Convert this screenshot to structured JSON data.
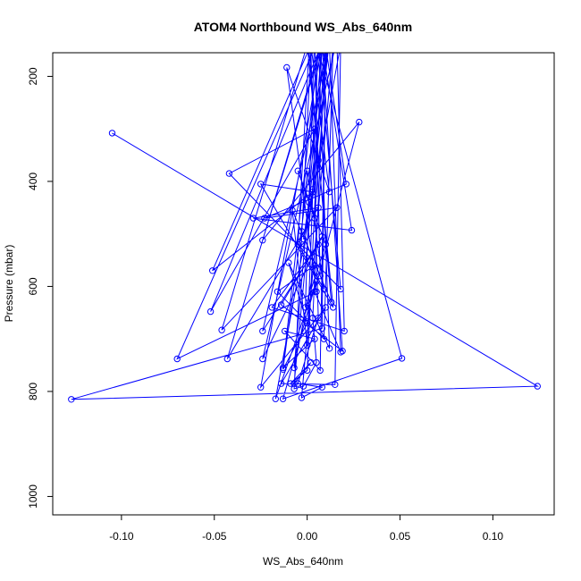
{
  "chart_data": {
    "type": "line",
    "title": "ATOM4 Northbound WS_Abs_640nm",
    "xlabel": "WS_Abs_640nm",
    "ylabel": "Pressure (mbar)",
    "xlim": [
      -0.137,
      0.133
    ],
    "ylim": [
      1035,
      155
    ],
    "y_reversed": true,
    "xticks": [
      -0.1,
      -0.05,
      0.0,
      0.05,
      0.1
    ],
    "xtick_labels": [
      "-0.10",
      "-0.05",
      "0.00",
      "0.05",
      "0.10"
    ],
    "yticks": [
      200,
      400,
      600,
      800,
      1000
    ],
    "ytick_labels": [
      "200",
      "400",
      "600",
      "800",
      "1000"
    ],
    "grid": false,
    "legend": "none",
    "colors": {
      "series": "#0000ff",
      "axis": "#000000",
      "background": "#ffffff"
    },
    "series": [
      {
        "points": [
          [
            -0.105,
            308
          ],
          [
            0.124,
            790
          ],
          [
            -0.127,
            815
          ],
          [
            0.008,
            680
          ],
          [
            0.01,
            120
          ],
          [
            -0.052,
            648
          ],
          [
            0.004,
            300
          ],
          [
            -0.042,
            385
          ],
          [
            0.018,
            605
          ],
          [
            0.006,
            130
          ],
          [
            -0.07,
            738
          ],
          [
            0.005,
            610
          ],
          [
            -0.011,
            183
          ],
          [
            0.012,
            420
          ],
          [
            0.002,
            140
          ],
          [
            -0.051,
            570
          ],
          [
            0.003,
            420
          ],
          [
            -0.025,
            405
          ],
          [
            0.014,
            640
          ],
          [
            0.0,
            140
          ],
          [
            -0.046,
            683
          ],
          [
            0.016,
            450
          ],
          [
            -0.023,
            470
          ],
          [
            0.021,
            405
          ],
          [
            0.009,
            120
          ],
          [
            -0.043,
            738
          ],
          [
            0.006,
            450
          ],
          [
            -0.029,
            470
          ],
          [
            0.024,
            493
          ],
          [
            0.008,
            140
          ],
          [
            -0.024,
            512
          ],
          [
            0.028,
            287
          ],
          [
            0.004,
            610
          ],
          [
            0.018,
            725
          ],
          [
            0.012,
            140
          ],
          [
            -0.024,
            685
          ],
          [
            0.006,
            520
          ],
          [
            -0.019,
            640
          ],
          [
            0.02,
            685
          ],
          [
            0.016,
            130
          ],
          [
            -0.024,
            738
          ],
          [
            0.008,
            505
          ],
          [
            -0.014,
            635
          ],
          [
            0.019,
            723
          ],
          [
            0.008,
            140
          ],
          [
            -0.025,
            792
          ],
          [
            0.01,
            640
          ],
          [
            -0.014,
            785
          ],
          [
            0.015,
            787
          ],
          [
            0.018,
            140
          ],
          [
            -0.017,
            814
          ],
          [
            0.005,
            590
          ],
          [
            -0.013,
            814
          ],
          [
            0.051,
            737
          ],
          [
            0.006,
            150
          ],
          [
            -0.013,
            755
          ],
          [
            0.004,
            700
          ],
          [
            -0.012,
            685
          ],
          [
            0.007,
            760
          ],
          [
            0.01,
            150
          ],
          [
            -0.007,
            785
          ],
          [
            0.002,
            745
          ],
          [
            -0.009,
            785
          ],
          [
            0.0,
            760
          ],
          [
            0.008,
            140
          ],
          [
            -0.007,
            755
          ],
          [
            0.004,
            560
          ],
          [
            -0.016,
            610
          ],
          [
            0.009,
            700
          ],
          [
            0.014,
            140
          ],
          [
            -0.003,
            812
          ],
          [
            0.008,
            792
          ],
          [
            -0.005,
            785
          ],
          [
            0.006,
            660
          ],
          [
            0.002,
            150
          ],
          [
            -0.007,
            795
          ],
          [
            -0.002,
            790
          ],
          [
            0.005,
            745
          ],
          [
            0.003,
            660
          ],
          [
            0.01,
            140
          ],
          [
            -0.013,
            758
          ],
          [
            0.0,
            670
          ],
          [
            -0.01,
            555
          ],
          [
            0.012,
            718
          ],
          [
            0.006,
            130
          ],
          [
            0.0,
            712
          ],
          [
            -0.008,
            455
          ],
          [
            0.013,
            630
          ],
          [
            0.001,
            150
          ],
          [
            -0.005,
            520
          ],
          [
            0.009,
            605
          ],
          [
            0.0,
            380
          ],
          [
            -0.003,
            495
          ],
          [
            0.007,
            580
          ],
          [
            0.004,
            120
          ],
          [
            -0.001,
            640
          ],
          [
            0.01,
            520
          ],
          [
            -0.005,
            380
          ],
          [
            0.004,
            470
          ],
          [
            0.011,
            140
          ],
          [
            0.001,
            440
          ],
          [
            -0.002,
            510
          ],
          [
            0.006,
            360
          ],
          [
            0.003,
            415
          ],
          [
            0.012,
            130
          ]
        ]
      }
    ]
  }
}
